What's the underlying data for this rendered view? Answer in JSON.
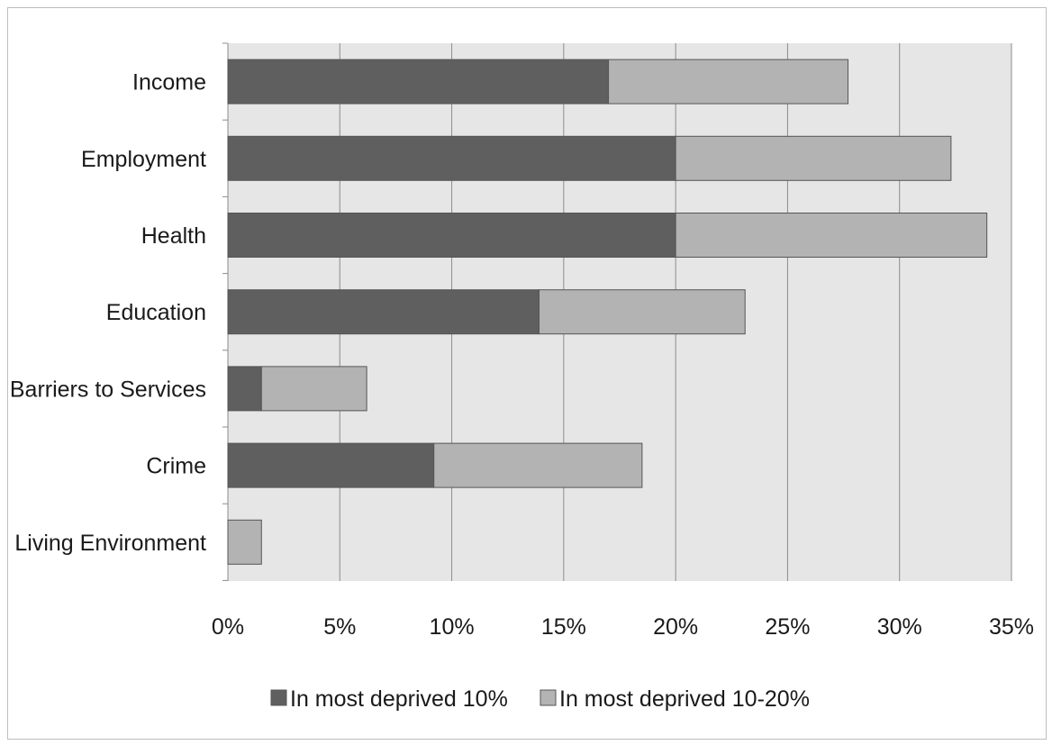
{
  "chart_data": {
    "type": "bar",
    "orientation": "horizontal",
    "stacked": true,
    "title": "",
    "xlabel": "",
    "ylabel": "",
    "categories": [
      "Income",
      "Employment",
      "Health",
      "Education",
      "Barriers to Services",
      "Crime ",
      "Living Environment"
    ],
    "series": [
      {
        "name": "In most deprived 10%",
        "values": [
          17.0,
          20.0,
          20.0,
          13.9,
          1.5,
          9.2,
          0.0
        ],
        "color": "#5f5f5f"
      },
      {
        "name": "In most deprived 10-20%",
        "values": [
          10.7,
          12.3,
          13.9,
          9.2,
          4.7,
          9.3,
          1.5
        ],
        "color": "#b3b3b3"
      }
    ],
    "xlim": [
      0,
      35
    ],
    "x_ticks": [
      "0%",
      "5%",
      "10%",
      "15%",
      "20%",
      "25%",
      "30%",
      "35%"
    ],
    "grid": "vertical",
    "legend_position": "bottom",
    "plot_background": "#e6e6e6"
  }
}
